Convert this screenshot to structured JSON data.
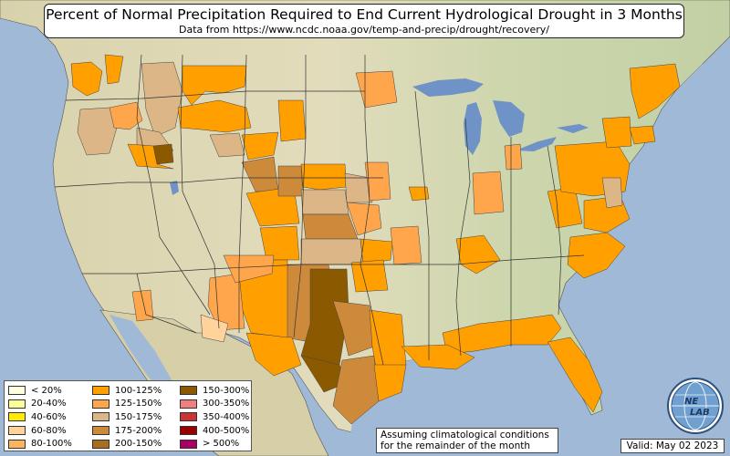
{
  "title": "Percent of Normal Precipitation Required to End Current Hydrological Drought in 3 Months",
  "subtitle": "Data from https://www.ncdc.noaa.gov/temp-and-precip/drought/recovery/",
  "legend": [
    {
      "label": "< 20%",
      "color": "#fdfde0"
    },
    {
      "label": "20-40%",
      "color": "#ffff99"
    },
    {
      "label": "40-60%",
      "color": "#ffea00"
    },
    {
      "label": "60-80%",
      "color": "#ffd39b"
    },
    {
      "label": "80-100%",
      "color": "#fdb45e"
    },
    {
      "label": "100-125%",
      "color": "#ff9f00"
    },
    {
      "label": "125-150%",
      "color": "#ffa64d"
    },
    {
      "label": "150-175%",
      "color": "#ddb688"
    },
    {
      "label": "175-200%",
      "color": "#cc8a3a"
    },
    {
      "label": "200-150%",
      "color": "#a86d1e"
    },
    {
      "label": "150-300%",
      "color": "#8b5a00"
    },
    {
      "label": "300-350%",
      "color": "#f08080"
    },
    {
      "label": "350-400%",
      "color": "#cc3333"
    },
    {
      "label": "400-500%",
      "color": "#990000"
    },
    {
      "label": "> 500%",
      "color": "#aa0066"
    }
  ],
  "note": {
    "line1": "Assuming climatological conditions",
    "line2": "for the remainder of the month"
  },
  "valid": "Valid: May 02 2023",
  "logo": {
    "text_top": "NE",
    "text_bottom": "LAB",
    "icon": "nexlab-globe-logo"
  },
  "colors": {
    "ocean": "#9fb9d6",
    "land": "#d9d4b0",
    "lake": "#6f93c6"
  }
}
